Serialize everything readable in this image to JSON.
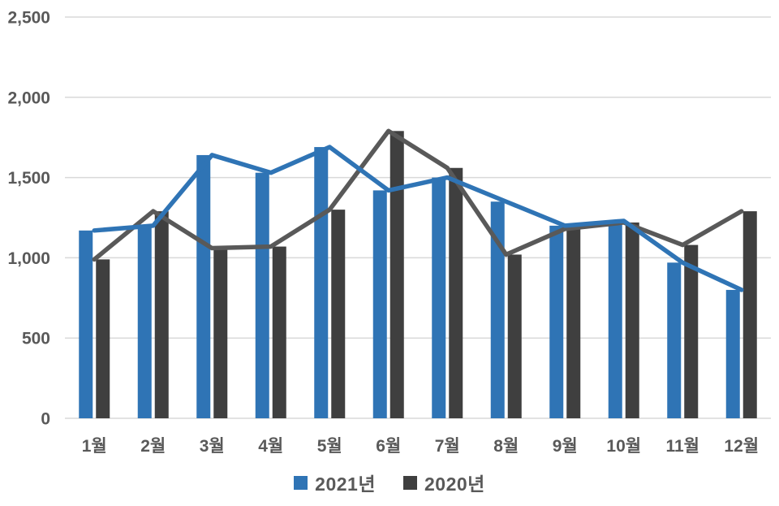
{
  "chart_data": {
    "type": "bar",
    "subtype": "grouped-bars-with-line-overlay",
    "title": "",
    "categories": [
      "1월",
      "2월",
      "3월",
      "4월",
      "5월",
      "6월",
      "7월",
      "8월",
      "9월",
      "10월",
      "11월",
      "12월"
    ],
    "series": [
      {
        "name": "2021년",
        "color": "#2F74B5",
        "line_color": "#2F74B5",
        "values": [
          1170,
          1200,
          1640,
          1530,
          1690,
          1420,
          1500,
          1350,
          1200,
          1230,
          970,
          800
        ]
      },
      {
        "name": "2020년",
        "color": "#3F3F3F",
        "line_color": "#595959",
        "values": [
          990,
          1290,
          1060,
          1070,
          1300,
          1790,
          1560,
          1020,
          1180,
          1220,
          1080,
          1290
        ]
      }
    ],
    "xlabel": "",
    "ylabel": "",
    "ylim": [
      0,
      2500
    ],
    "ytick_step": 500,
    "ytick_labels": [
      "0",
      "500",
      "1,000",
      "1,500",
      "2,000",
      "2,500"
    ],
    "grid": "horizontal",
    "gridline_color": "#D9D9D9",
    "axis_text_color": "#595959",
    "background_color": "#FFFFFF",
    "legend_position": "bottom"
  }
}
